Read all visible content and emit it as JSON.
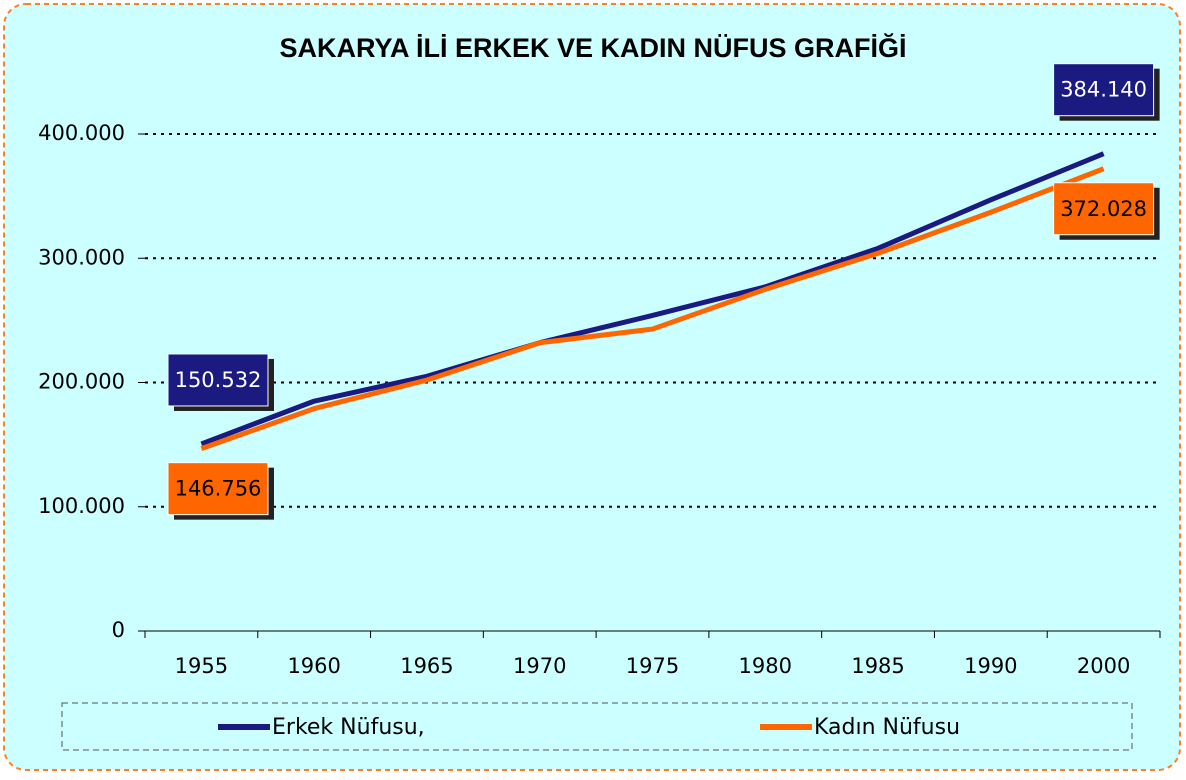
{
  "chart_data": {
    "type": "line",
    "title": "SAKARYA İLİ ERKEK VE KADIN NÜFUS GRAFİĞİ",
    "categories": [
      "1955",
      "1960",
      "1965",
      "1970",
      "1975",
      "1980",
      "1985",
      "1990",
      "2000"
    ],
    "series": [
      {
        "name": "Erkek Nüfusu,",
        "color": "#1a1a80",
        "values": [
          150532,
          185000,
          205000,
          232000,
          254000,
          277000,
          308000,
          347000,
          384140
        ],
        "value_labels": [
          "150.532",
          null,
          null,
          null,
          null,
          null,
          null,
          null,
          "384.140"
        ]
      },
      {
        "name": "Kadın Nüfusu",
        "color": "#ff6600",
        "values": [
          146756,
          179000,
          202000,
          232000,
          243000,
          275000,
          304000,
          337000,
          372028
        ],
        "value_labels": [
          "146.756",
          null,
          null,
          null,
          null,
          null,
          null,
          null,
          "372.028"
        ]
      }
    ],
    "ylim": [
      0,
      400000
    ],
    "yticks": [
      0,
      {
        "value": 100000,
        "label": "100.000"
      },
      {
        "value": 200000,
        "label": "200.000"
      },
      {
        "value": 300000,
        "label": "300.000"
      },
      {
        "value": 400000,
        "label": "400.000"
      }
    ],
    "grid": true,
    "legend": "bottom"
  }
}
